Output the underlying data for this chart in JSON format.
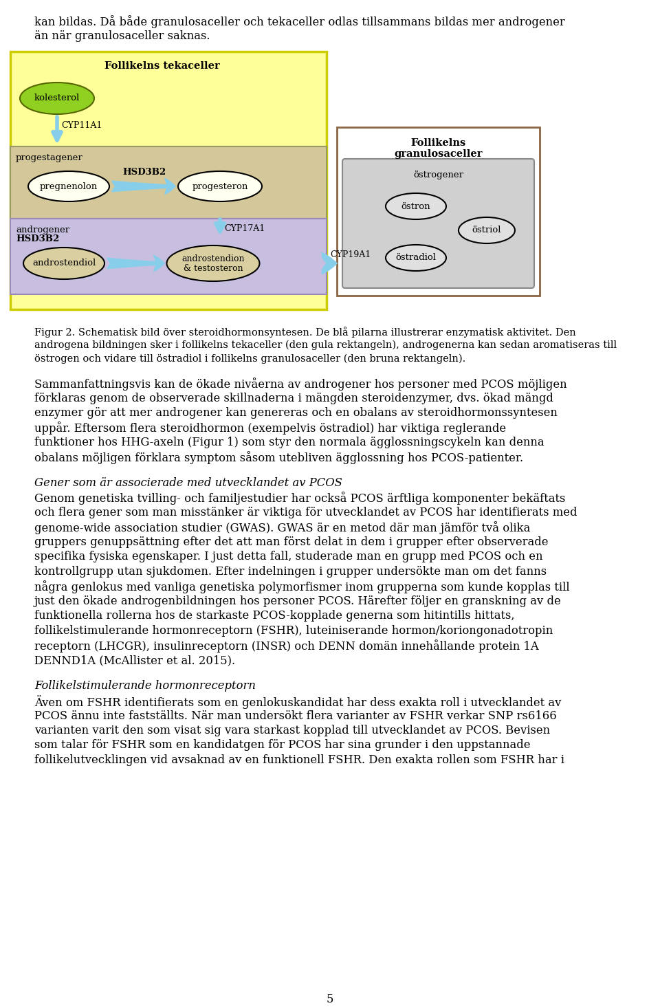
{
  "page_bg": "#ffffff",
  "intro_text_line1": "kan bildas. Då både granulosaceller och tekaceller odlas tillsammans bildas mer androgener",
  "intro_text_line2": "än när granulosaceller saknas.",
  "figure_caption_lines": [
    "Figur 2. Schematisk bild över steroidhormonsyntesen. De blå pilarna illustrerar enzymatisk aktivitet. Den",
    "androgena bildningen sker i follikelns tekaceller (den gula rektangeln), androgenerna kan sedan aromatiseras till",
    "östrogen och vidare till östradiol i follikelns granulosaceller (den bruna rektangeln)."
  ],
  "para1_lines": [
    "Sammanfattningsvis kan de ökade nivåerna av androgener hos personer med PCOS möjligen",
    "förklaras genom de observerade skillnaderna i mängden steroidenzymer, dvs. ökad mängd",
    "enzymer gör att mer androgener kan genereras och en obalans av steroidhormonssyntesen",
    "uppår. Eftersom flera steroidhormon (exempelvis östradiol) har viktiga reglerande",
    "funktioner hos HHG-axeln (Figur 1) som styr den normala ägglossningscykeln kan denna",
    "obalans möjligen förklara symptom såsom utebliven ägglossning hos PCOS-patienter."
  ],
  "heading2": "Gener som är associerade med utvecklandet av PCOS",
  "para2_lines": [
    "Genom genetiska tvilling- och familjestudier har också PCOS ärftliga komponenter bekäftats",
    "och flera gener som man misstänker är viktiga för utvecklandet av PCOS har identifierats med",
    "genome-wide association studier (GWAS). GWAS är en metod där man jämför två olika",
    "gruppers genuppsättning efter det att man först delat in dem i grupper efter observerade",
    "specifika fysiska egenskaper. I just detta fall, studerade man en grupp med PCOS och en",
    "kontrollgrupp utan sjukdomen. Efter indelningen i grupper undersökte man om det fanns",
    "några genlokus med vanliga genetiska polymorfismer inom grupperna som kunde kopplas till",
    "just den ökade androgenbildningen hos personer PCOS. Härefter följer en granskning av de",
    "funktionella rollerna hos de starkaste PCOS-kopplade generna som hitintills hittats,",
    "follikelstimulerande hormonreceptorn (FSHR), luteiniserande hormon/koriongonadotropin",
    "receptorn (LHCGR), insulinreceptorn (INSR) och DENN domän innehållande protein 1A",
    "DENND1A (McAllister et al. 2015)."
  ],
  "heading3": "Follikelstimulerande hormonreceptorn",
  "para3_lines": [
    "Även om FSHR identifierats som en genlokuskandidat har dess exakta roll i utvecklandet av",
    "PCOS ännu inte fastställts. När man undersökt flera varianter av FSHR verkar SNP rs6166",
    "varianten varit den som visat sig vara starkast kopplad till utvecklandet av PCOS. Bevisen",
    "som talar för FSHR som en kandidatgen för PCOS har sina grunder i den uppstannade",
    "follikelutvecklingen vid avsaknad av en funktionell FSHR. Den exakta rollen som FSHR har i"
  ],
  "page_number": "5",
  "yellow_color": "#ffff99",
  "yellow_edge": "#cccc00",
  "tan_color": "#d4c89a",
  "tan_edge": "#999966",
  "purple_color": "#c8bfe0",
  "purple_edge": "#9988bb",
  "brown_edge": "#8B6542",
  "gray_fill": "#d0d0d0",
  "gray_edge": "#888888",
  "ellipse_fill_light": "#fffff0",
  "ellipse_fill_tan": "#d9cfa0",
  "ellipse_fill_gray": "#e0e0e0",
  "arrow_color": "#87ceeb",
  "green_fill": "#90d020",
  "green_edge": "#556600"
}
